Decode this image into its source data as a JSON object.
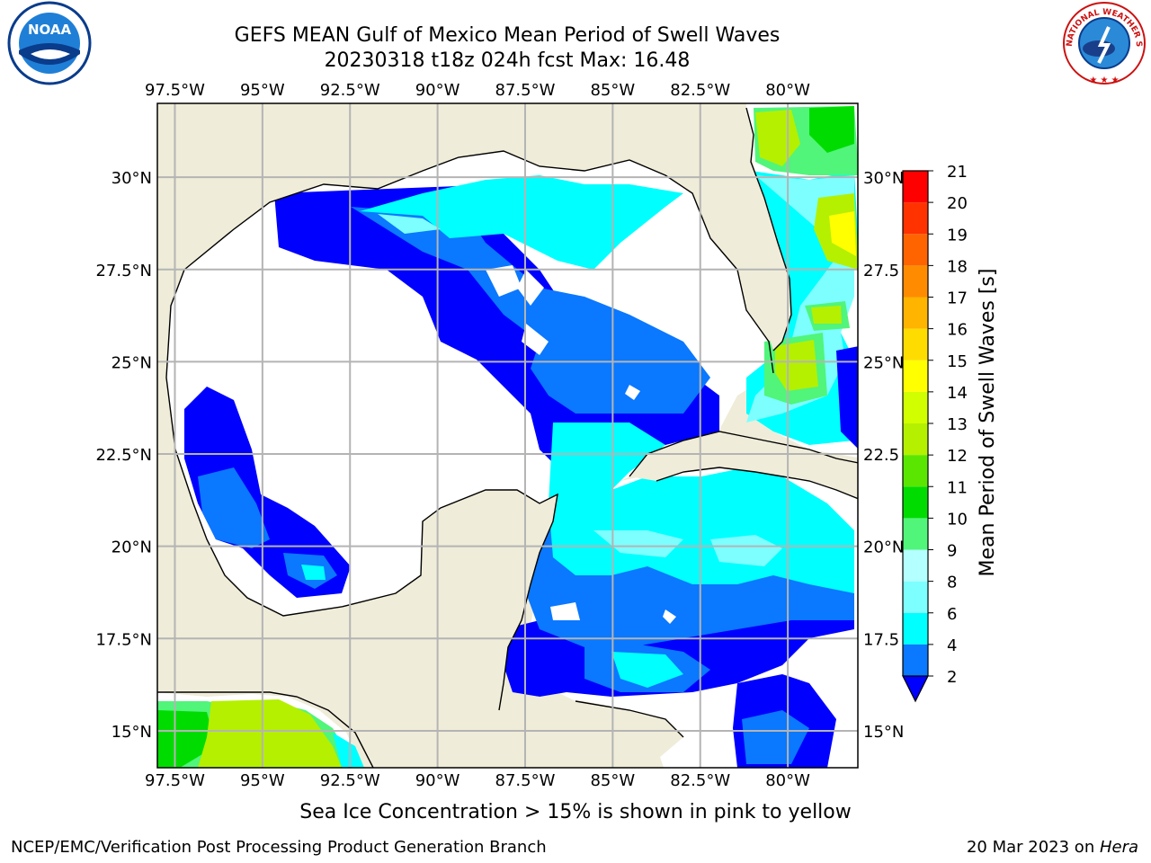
{
  "header": {
    "title": "GEFS MEAN Gulf of Mexico Mean Period of Swell Waves",
    "subtitle": "20230318 t18z 024h fcst   Max: 16.48"
  },
  "axes": {
    "lon_labels": [
      "97.5°W",
      "95°W",
      "92.5°W",
      "90°W",
      "87.5°W",
      "85°W",
      "82.5°W",
      "80°W"
    ],
    "lat_labels_left": [
      "30°N",
      "27.5°N",
      "25°N",
      "22.5°N",
      "20°N",
      "17.5°N",
      "15°N"
    ],
    "lat_labels_right": [
      "30°N",
      "27.5",
      "25°N",
      "22.5",
      "20°N",
      "17.5",
      "15°N"
    ],
    "lon_range": [
      -98,
      -78
    ],
    "lat_range": [
      14,
      32
    ],
    "grid": true
  },
  "colorbar": {
    "label": "Mean Period of Swell Waves [s]",
    "ticks": [
      "2",
      "4",
      "6",
      "8",
      "9",
      "10",
      "11",
      "12",
      "13",
      "14",
      "15",
      "16",
      "17",
      "18",
      "19",
      "20",
      "21"
    ],
    "colors": [
      "#0a78ff",
      "#00dcff",
      "#00ffff",
      "#7dffff",
      "#b4ffff",
      "#50f57a",
      "#00dc00",
      "#5ae600",
      "#b4f000",
      "#d2ff00",
      "#ffff00",
      "#ffdc00",
      "#ffb400",
      "#ff8c00",
      "#ff6400",
      "#ff3200",
      "#ff0000"
    ],
    "under_color": "#0000ff",
    "extend": "min"
  },
  "chart_data": {
    "type": "heatmap",
    "variable": "Mean Period of Swell Waves",
    "units": "s",
    "max": 16.48,
    "colors": {
      "land": "#efecd9",
      "no_data": "#ffffff",
      "lt2": "#0000ff",
      "c2_4": "#0a78ff",
      "c4_6": "#00ffff",
      "c6_8": "#7dffff",
      "c9_10": "#50f57a",
      "c10_11": "#00dc00",
      "c12_13": "#b4f000",
      "c14_15": "#ffff00"
    }
  },
  "footer": {
    "ice_note": "Sea Ice Concentration > 15% is shown in pink to yellow",
    "credit": "NCEP/EMC/Verification Post Processing Product Generation Branch",
    "date_prefix": "20 Mar 2023 on ",
    "machine": "Hera"
  },
  "logos": {
    "noaa": "NOAA",
    "nws": "NATIONAL WEATHER SERVICE"
  }
}
